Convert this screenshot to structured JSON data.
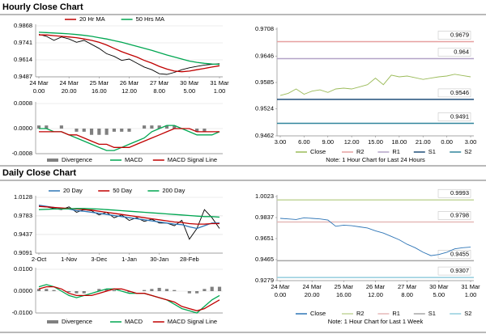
{
  "headings": [
    "Hourly Close Chart",
    "Daily Close Chart"
  ],
  "chart_data": [
    {
      "type": "line",
      "ylim": [
        0.9487,
        0.9868
      ],
      "yticks": [
        0.9868,
        0.9741,
        0.9614,
        0.9487
      ],
      "grid": true,
      "xticks": [
        {
          "value": 0,
          "label": [
            "24 Mar",
            "0.00"
          ]
        },
        {
          "value": 4,
          "label": [
            "24 Mar",
            "20.00"
          ]
        },
        {
          "value": 8,
          "label": [
            "25 Mar",
            "16.00"
          ]
        },
        {
          "value": 12,
          "label": [
            "26 Mar",
            "12.00"
          ]
        },
        {
          "value": 16,
          "label": [
            "27 Mar",
            "8.00"
          ]
        },
        {
          "value": 20,
          "label": [
            "30 Mar",
            "5.00"
          ]
        },
        {
          "value": 24,
          "label": [
            "31 Mar",
            "1.00"
          ]
        }
      ],
      "series": [
        {
          "color": "#000000",
          "values": [
            0.9805,
            0.979,
            0.976,
            0.9785,
            0.977,
            0.9745,
            0.976,
            0.973,
            0.97,
            0.966,
            0.964,
            0.961,
            0.962,
            0.959,
            0.956,
            0.954,
            0.951,
            0.9505,
            0.952,
            0.954,
            0.9555,
            0.9565,
            0.9575,
            0.958,
            0.9585
          ]
        },
        {
          "name": "20 Hr MA",
          "color": "#c00000",
          "values": [
            0.98,
            0.98,
            0.9795,
            0.979,
            0.9785,
            0.978,
            0.977,
            0.976,
            0.9745,
            0.9725,
            0.97,
            0.9675,
            0.9655,
            0.9635,
            0.961,
            0.959,
            0.9565,
            0.9545,
            0.953,
            0.9525,
            0.953,
            0.954,
            0.955,
            0.956,
            0.957
          ]
        },
        {
          "name": "50 Hrs MA",
          "color": "#00a651",
          "values": [
            0.982,
            0.9818,
            0.9815,
            0.9812,
            0.9808,
            0.9803,
            0.9797,
            0.979,
            0.978,
            0.977,
            0.9758,
            0.9745,
            0.973,
            0.9715,
            0.97,
            0.9685,
            0.9668,
            0.965,
            0.9635,
            0.962,
            0.9605,
            0.9595,
            0.9588,
            0.9583,
            0.958
          ]
        }
      ]
    },
    {
      "type": "combo",
      "ylim": [
        -0.0008,
        0.0008
      ],
      "yticks": [
        0.0008,
        {
          "value": 0,
          "label": "0.0000"
        },
        -0.0008
      ],
      "grid": true,
      "series": [
        {
          "name": "Divergence",
          "type": "bar",
          "color": "#808080",
          "values": [
            0.0001,
            0.0001,
            0,
            0.0001,
            0,
            -0.0001,
            -0.0001,
            -0.0002,
            -0.0002,
            -0.0002,
            -0.0001,
            -0.0001,
            -0.0001,
            0,
            0.0001,
            0.0001,
            0.0001,
            0.0001,
            0.0001,
            0,
            0,
            -0.0001,
            -0.0001,
            0,
            0
          ]
        },
        {
          "name": "MACD",
          "type": "line",
          "color": "#00a651",
          "values": [
            0,
            0,
            -0.0001,
            -0.0001,
            -0.0002,
            -0.0003,
            -0.0004,
            -0.0005,
            -0.0006,
            -0.0007,
            -0.0007,
            -0.0006,
            -0.0005,
            -0.0004,
            -0.0003,
            -0.0001,
            0,
            0.0001,
            0.0001,
            0,
            -0.0001,
            -0.0002,
            -0.0002,
            -0.0002,
            -0.0001
          ]
        },
        {
          "name": "MACD Signal Line",
          "type": "line",
          "color": "#c00000",
          "values": [
            -0.0001,
            -0.0001,
            -0.0001,
            -0.0001,
            -0.0002,
            -0.0002,
            -0.0003,
            -0.0004,
            -0.0005,
            -0.0005,
            -0.0006,
            -0.0006,
            -0.0006,
            -0.0005,
            -0.0004,
            -0.0003,
            -0.0002,
            -0.0001,
            0,
            0,
            0,
            -0.0001,
            -0.0001,
            -0.0001,
            -0.0001
          ]
        }
      ]
    },
    {
      "type": "line",
      "ylim": [
        0.9462,
        0.9708
      ],
      "yticks": [
        0.9708,
        0.9646,
        0.9585,
        0.9524,
        0.9462
      ],
      "xticks": [
        {
          "value": 0,
          "label": "3.00"
        },
        {
          "value": 3,
          "label": "6.00"
        },
        {
          "value": 6,
          "label": "9.00"
        },
        {
          "value": 9,
          "label": "12.00"
        },
        {
          "value": 12,
          "label": "15.00"
        },
        {
          "value": 15,
          "label": "18.00"
        },
        {
          "value": 18,
          "label": "21.00"
        },
        {
          "value": 21,
          "label": "0.00"
        },
        {
          "value": 24,
          "label": "3.00"
        }
      ],
      "series": [
        {
          "name": "Close",
          "color": "#9bbb59",
          "values": [
            0.9555,
            0.956,
            0.957,
            0.9558,
            0.9565,
            0.9568,
            0.9562,
            0.957,
            0.9572,
            0.957,
            0.9575,
            0.958,
            0.9595,
            0.958,
            0.9602,
            0.9598,
            0.96,
            0.9596,
            0.9592,
            0.9595,
            0.9598,
            0.96,
            0.9604,
            0.9601,
            0.9598
          ]
        }
      ],
      "levels": [
        {
          "name": "R2",
          "color": "#e6a0a0",
          "value": 0.9679
        },
        {
          "name": "R1",
          "color": "#b3a2c7",
          "value": 0.964
        },
        {
          "name": "S1",
          "color": "#1f4e79",
          "value": 0.9546
        },
        {
          "name": "S2",
          "color": "#31859c",
          "value": 0.9491
        }
      ],
      "note": "Note: 1 Hour Chart for Last 24 Hours"
    },
    {
      "type": "line",
      "ylim": [
        0.9091,
        1.0128
      ],
      "yticks": [
        1.0128,
        0.9783,
        0.9437,
        0.9091
      ],
      "grid": true,
      "xticks": [
        {
          "value": 0,
          "label": "2-Oct"
        },
        {
          "value": 4,
          "label": "1-Nov"
        },
        {
          "value": 8,
          "label": "3-Dec"
        },
        {
          "value": 12,
          "label": "1-Jan"
        },
        {
          "value": 16,
          "label": "30-Jan"
        },
        {
          "value": 20,
          "label": "28-Feb"
        }
      ],
      "series": [
        {
          "color": "#000000",
          "values": [
            0.996,
            0.995,
            0.992,
            0.99,
            0.995,
            0.985,
            0.99,
            0.988,
            0.98,
            0.985,
            0.975,
            0.98,
            0.97,
            0.975,
            0.968,
            0.972,
            0.965,
            0.965,
            0.96,
            0.97,
            0.935,
            0.955,
            0.99,
            0.975,
            0.955
          ]
        },
        {
          "name": "20 Day",
          "color": "#2e75b6",
          "values": [
            0.998,
            0.996,
            0.994,
            0.992,
            0.991,
            0.988,
            0.987,
            0.985,
            0.983,
            0.981,
            0.979,
            0.977,
            0.975,
            0.973,
            0.971,
            0.969,
            0.967,
            0.965,
            0.963,
            0.962,
            0.958,
            0.955,
            0.96,
            0.965,
            0.965
          ]
        },
        {
          "name": "50 Day",
          "color": "#c00000",
          "values": [
            0.996,
            0.995,
            0.994,
            0.993,
            0.992,
            0.991,
            0.99,
            0.989,
            0.987,
            0.985,
            0.983,
            0.981,
            0.979,
            0.977,
            0.975,
            0.973,
            0.971,
            0.969,
            0.967,
            0.966,
            0.964,
            0.963,
            0.963,
            0.964,
            0.964
          ]
        },
        {
          "name": "200 Day",
          "color": "#00a651",
          "values": [
            0.99,
            0.9905,
            0.991,
            0.991,
            0.9915,
            0.992,
            0.992,
            0.9915,
            0.991,
            0.99,
            0.989,
            0.988,
            0.987,
            0.986,
            0.985,
            0.984,
            0.983,
            0.982,
            0.981,
            0.98,
            0.979,
            0.978,
            0.977,
            0.977,
            0.976
          ]
        }
      ]
    },
    {
      "type": "combo",
      "ylim": [
        -0.01,
        0.01
      ],
      "yticks": [
        {
          "value": 0.01,
          "label": "0.0100"
        },
        {
          "value": 0,
          "label": "0.0000"
        },
        {
          "value": -0.01,
          "label": "-0.0100"
        }
      ],
      "grid": true,
      "series": [
        {
          "name": "Divergence",
          "type": "bar",
          "color": "#808080",
          "values": [
            0.001,
            0.001,
            0.0005,
            0,
            -0.0005,
            -0.001,
            -0.001,
            0,
            0.001,
            0.001,
            0.0005,
            0,
            -0.0005,
            0,
            0.0005,
            0.001,
            0.0015,
            0.001,
            0.0005,
            0,
            -0.001,
            -0.001,
            0.001,
            0.002,
            0.002
          ]
        },
        {
          "name": "MACD",
          "type": "line",
          "color": "#00a651",
          "values": [
            0.002,
            0.003,
            0.002,
            0,
            -0.002,
            -0.003,
            -0.002,
            -0.001,
            0,
            0.001,
            0.001,
            0,
            -0.001,
            -0.001,
            -0.001,
            -0.002,
            -0.003,
            -0.004,
            -0.006,
            -0.008,
            -0.009,
            -0.01,
            -0.007,
            -0.004,
            -0.002
          ]
        },
        {
          "name": "MACD Signal Line",
          "type": "line",
          "color": "#c00000",
          "values": [
            0.001,
            0.002,
            0.002,
            0.001,
            -0.001,
            -0.002,
            -0.002,
            -0.002,
            -0.001,
            0,
            0.001,
            0.001,
            0,
            -0.001,
            -0.001,
            -0.002,
            -0.003,
            -0.004,
            -0.005,
            -0.007,
            -0.008,
            -0.009,
            -0.008,
            -0.006,
            -0.004
          ]
        }
      ]
    },
    {
      "type": "line",
      "ylim": [
        0.9279,
        1.0023
      ],
      "yticks": [
        1.0023,
        0.9837,
        0.9651,
        0.9465,
        0.9279
      ],
      "xticks": [
        {
          "value": 0,
          "label": [
            "24 Mar",
            "0.00"
          ]
        },
        {
          "value": 4,
          "label": [
            "24 Mar",
            "20.00"
          ]
        },
        {
          "value": 8,
          "label": [
            "25 Mar",
            "16.00"
          ]
        },
        {
          "value": 12,
          "label": [
            "26 Mar",
            "12.00"
          ]
        },
        {
          "value": 16,
          "label": [
            "27 Mar",
            "8.00"
          ]
        },
        {
          "value": 20,
          "label": [
            "30 Mar",
            "5.00"
          ]
        },
        {
          "value": 24,
          "label": [
            "31 Mar",
            "1.00"
          ]
        }
      ],
      "series": [
        {
          "name": "Close",
          "color": "#2e75b6",
          "values": [
            0.983,
            0.9825,
            0.982,
            0.9835,
            0.983,
            0.9825,
            0.9815,
            0.976,
            0.977,
            0.9765,
            0.9755,
            0.9745,
            0.972,
            0.97,
            0.967,
            0.964,
            0.96,
            0.957,
            0.953,
            0.95,
            0.951,
            0.953,
            0.956,
            0.957,
            0.9575
          ]
        }
      ],
      "levels": [
        {
          "name": "R2",
          "color": "#c3d69b",
          "value": 0.9993
        },
        {
          "name": "R1",
          "color": "#e6b9b8",
          "value": 0.9798
        },
        {
          "name": "S1",
          "color": "#a6a6a6",
          "value": 0.9455
        },
        {
          "name": "S2",
          "color": "#93cddd",
          "value": 0.9307
        }
      ],
      "note": "Note: 1 Hour Chart for Last 1 Week"
    }
  ]
}
